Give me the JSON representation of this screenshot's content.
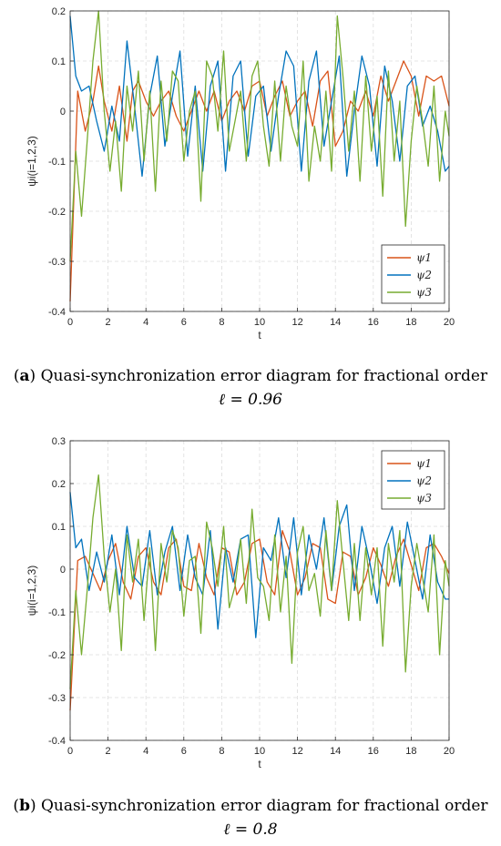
{
  "chart_data": [
    {
      "type": "line",
      "caption_tag": "a",
      "caption_text": "Quasi-synchronization error diagram for fractional order",
      "caption_eq": "ℓ = 0.96",
      "xlabel": "t",
      "ylabel": "ψi(i=1,2,3)",
      "xlim": [
        0,
        20
      ],
      "ylim": [
        -0.4,
        0.2
      ],
      "xticks": [
        0,
        2,
        4,
        6,
        8,
        10,
        12,
        14,
        16,
        18,
        20
      ],
      "yticks": [
        -0.4,
        -0.3,
        -0.2,
        -0.1,
        0,
        0.1,
        0.2
      ],
      "ytick_labels": [
        "-0.4",
        "-0.3",
        "-0.2",
        "-0.1",
        "0",
        "0.1",
        "0.2"
      ],
      "grid": true,
      "legend_position": "bottom-right",
      "series": [
        {
          "name": "ψ1",
          "sub": "1",
          "color": "#D95319",
          "x": [
            0,
            0.4,
            0.8,
            1.2,
            1.5,
            1.8,
            2.2,
            2.6,
            3.0,
            3.3,
            3.6,
            4.0,
            4.4,
            4.8,
            5.2,
            5.6,
            6.0,
            6.4,
            6.8,
            7.2,
            7.6,
            8.0,
            8.4,
            8.8,
            9.2,
            9.6,
            10.0,
            10.4,
            10.8,
            11.2,
            11.6,
            12.0,
            12.4,
            12.8,
            13.2,
            13.6,
            14.0,
            14.4,
            14.8,
            15.2,
            15.6,
            16.0,
            16.4,
            16.8,
            17.2,
            17.6,
            18.0,
            18.4,
            18.8,
            19.2,
            19.6,
            20.0
          ],
          "y": [
            -0.38,
            0.04,
            -0.04,
            0.02,
            0.09,
            0.02,
            -0.04,
            0.05,
            -0.06,
            0.04,
            0.06,
            0.02,
            -0.01,
            0.02,
            0.04,
            -0.01,
            -0.04,
            0.0,
            0.04,
            0.0,
            0.04,
            -0.02,
            0.02,
            0.04,
            0.0,
            0.05,
            0.06,
            -0.01,
            0.03,
            0.06,
            -0.01,
            0.02,
            0.04,
            -0.03,
            0.06,
            0.08,
            -0.07,
            -0.04,
            0.02,
            0.0,
            0.04,
            -0.01,
            0.07,
            0.02,
            0.06,
            0.1,
            0.07,
            -0.01,
            0.07,
            0.06,
            0.07,
            0.01
          ]
        },
        {
          "name": "ψ2",
          "sub": "2",
          "color": "#0072BD",
          "x": [
            0,
            0.3,
            0.6,
            1.0,
            1.4,
            1.8,
            2.2,
            2.6,
            3.0,
            3.4,
            3.8,
            4.2,
            4.6,
            5.0,
            5.4,
            5.8,
            6.2,
            6.6,
            7.0,
            7.4,
            7.8,
            8.2,
            8.6,
            9.0,
            9.4,
            9.8,
            10.2,
            10.6,
            11.0,
            11.4,
            11.8,
            12.2,
            12.6,
            13.0,
            13.4,
            13.8,
            14.2,
            14.6,
            15.0,
            15.4,
            15.8,
            16.2,
            16.6,
            17.0,
            17.4,
            17.8,
            18.2,
            18.6,
            19.0,
            19.4,
            19.8,
            20.0
          ],
          "y": [
            0.19,
            0.07,
            0.04,
            0.05,
            -0.02,
            -0.08,
            0.01,
            -0.06,
            0.14,
            0.01,
            -0.13,
            0.03,
            0.11,
            -0.07,
            0.03,
            0.12,
            -0.09,
            0.05,
            -0.12,
            0.05,
            0.1,
            -0.12,
            0.07,
            0.1,
            -0.09,
            0.03,
            0.05,
            -0.08,
            0.03,
            0.12,
            0.09,
            -0.12,
            0.06,
            0.12,
            -0.07,
            0.02,
            0.11,
            -0.13,
            0.0,
            0.11,
            0.05,
            -0.11,
            0.09,
            0.02,
            -0.1,
            0.05,
            0.07,
            -0.03,
            0.01,
            -0.04,
            -0.12,
            -0.11
          ]
        },
        {
          "name": "ψ3",
          "sub": "3",
          "color": "#77AC30",
          "x": [
            0,
            0.3,
            0.6,
            0.9,
            1.2,
            1.5,
            1.8,
            2.1,
            2.4,
            2.7,
            3.0,
            3.3,
            3.6,
            3.9,
            4.2,
            4.5,
            4.8,
            5.1,
            5.4,
            5.7,
            6.0,
            6.3,
            6.6,
            6.9,
            7.2,
            7.5,
            7.8,
            8.1,
            8.4,
            8.7,
            9.0,
            9.3,
            9.6,
            9.9,
            10.2,
            10.5,
            10.8,
            11.1,
            11.4,
            11.7,
            12.0,
            12.3,
            12.6,
            12.9,
            13.2,
            13.5,
            13.8,
            14.1,
            14.4,
            14.7,
            15.0,
            15.3,
            15.6,
            15.9,
            16.2,
            16.5,
            16.8,
            17.1,
            17.4,
            17.7,
            18.0,
            18.3,
            18.6,
            18.9,
            19.2,
            19.5,
            19.8,
            20.0
          ],
          "y": [
            -0.3,
            -0.08,
            -0.21,
            -0.06,
            0.1,
            0.2,
            0.0,
            -0.12,
            -0.02,
            -0.16,
            0.05,
            -0.04,
            0.08,
            -0.1,
            0.04,
            -0.16,
            0.06,
            -0.06,
            0.08,
            0.06,
            -0.1,
            0.0,
            0.04,
            -0.18,
            0.1,
            0.07,
            -0.04,
            0.12,
            -0.08,
            -0.02,
            0.04,
            -0.1,
            0.07,
            0.1,
            -0.03,
            -0.11,
            0.06,
            -0.1,
            0.05,
            -0.03,
            -0.07,
            0.1,
            -0.14,
            -0.03,
            -0.1,
            0.04,
            -0.12,
            0.19,
            0.07,
            -0.08,
            0.04,
            -0.14,
            0.07,
            -0.08,
            0.03,
            -0.17,
            0.08,
            -0.1,
            0.02,
            -0.23,
            -0.06,
            0.05,
            -0.02,
            -0.11,
            0.05,
            -0.14,
            0.0,
            -0.05
          ]
        }
      ]
    },
    {
      "type": "line",
      "caption_tag": "b",
      "caption_text": "Quasi-synchronization error diagram for fractional order",
      "caption_eq": "ℓ = 0.8",
      "xlabel": "t",
      "ylabel": "ψi(i=1,2,3)",
      "xlim": [
        0,
        20
      ],
      "ylim": [
        -0.4,
        0.3
      ],
      "xticks": [
        0,
        2,
        4,
        6,
        8,
        10,
        12,
        14,
        16,
        18,
        20
      ],
      "yticks": [
        -0.4,
        -0.3,
        -0.2,
        -0.1,
        0,
        0.1,
        0.2,
        0.3
      ],
      "ytick_labels": [
        "-0.4",
        "-0.3",
        "-0.2",
        "-0.1",
        "0",
        "0.1",
        "0.2",
        "0.3"
      ],
      "grid": true,
      "legend_position": "top-right",
      "series": [
        {
          "name": "ψ1",
          "sub": "1",
          "color": "#D95319",
          "x": [
            0,
            0.4,
            0.8,
            1.2,
            1.6,
            2.0,
            2.4,
            2.8,
            3.2,
            3.6,
            4.0,
            4.4,
            4.8,
            5.2,
            5.6,
            6.0,
            6.4,
            6.8,
            7.2,
            7.6,
            8.0,
            8.4,
            8.8,
            9.2,
            9.6,
            10.0,
            10.4,
            10.8,
            11.2,
            11.6,
            12.0,
            12.4,
            12.8,
            13.2,
            13.6,
            14.0,
            14.4,
            14.8,
            15.2,
            15.6,
            16.0,
            16.4,
            16.8,
            17.2,
            17.6,
            18.0,
            18.4,
            18.8,
            19.2,
            19.6,
            20.0
          ],
          "y": [
            -0.33,
            0.02,
            0.03,
            -0.01,
            -0.05,
            0.02,
            0.06,
            -0.03,
            -0.07,
            0.03,
            0.05,
            -0.03,
            -0.06,
            0.05,
            0.07,
            -0.04,
            -0.05,
            0.06,
            -0.02,
            -0.06,
            0.05,
            0.04,
            -0.06,
            -0.03,
            0.06,
            0.07,
            -0.03,
            -0.06,
            0.09,
            0.04,
            -0.06,
            -0.02,
            0.06,
            0.05,
            -0.07,
            -0.08,
            0.04,
            0.03,
            -0.06,
            -0.02,
            0.05,
            0.01,
            -0.04,
            0.03,
            0.07,
            0.01,
            -0.05,
            0.05,
            0.06,
            0.03,
            -0.01
          ]
        },
        {
          "name": "ψ2",
          "sub": "2",
          "color": "#0072BD",
          "x": [
            0,
            0.3,
            0.6,
            1.0,
            1.4,
            1.8,
            2.2,
            2.6,
            3.0,
            3.4,
            3.8,
            4.2,
            4.6,
            5.0,
            5.4,
            5.8,
            6.2,
            6.6,
            7.0,
            7.4,
            7.8,
            8.2,
            8.6,
            9.0,
            9.4,
            9.8,
            10.2,
            10.6,
            11.0,
            11.4,
            11.8,
            12.2,
            12.6,
            13.0,
            13.4,
            13.8,
            14.2,
            14.6,
            15.0,
            15.4,
            15.8,
            16.2,
            16.6,
            17.0,
            17.4,
            17.8,
            18.2,
            18.6,
            19.0,
            19.4,
            19.8,
            20.0
          ],
          "y": [
            0.18,
            0.05,
            0.07,
            -0.05,
            0.04,
            -0.03,
            0.08,
            -0.06,
            0.1,
            -0.02,
            -0.04,
            0.09,
            -0.06,
            0.04,
            0.1,
            -0.05,
            0.08,
            -0.02,
            -0.06,
            0.09,
            -0.14,
            0.05,
            -0.03,
            0.07,
            0.08,
            -0.16,
            0.05,
            0.02,
            0.12,
            -0.02,
            0.12,
            -0.06,
            0.08,
            0.0,
            0.12,
            -0.05,
            0.1,
            0.15,
            -0.05,
            0.1,
            0.02,
            -0.08,
            0.05,
            0.1,
            -0.04,
            0.11,
            0.02,
            -0.07,
            0.08,
            -0.03,
            -0.07,
            -0.07
          ]
        },
        {
          "name": "ψ3",
          "sub": "3",
          "color": "#77AC30",
          "x": [
            0,
            0.3,
            0.6,
            0.9,
            1.2,
            1.5,
            1.8,
            2.1,
            2.4,
            2.7,
            3.0,
            3.3,
            3.6,
            3.9,
            4.2,
            4.5,
            4.8,
            5.1,
            5.4,
            5.7,
            6.0,
            6.3,
            6.6,
            6.9,
            7.2,
            7.5,
            7.8,
            8.1,
            8.4,
            8.7,
            9.0,
            9.3,
            9.6,
            9.9,
            10.2,
            10.5,
            10.8,
            11.1,
            11.4,
            11.7,
            12.0,
            12.3,
            12.6,
            12.9,
            13.2,
            13.5,
            13.8,
            14.1,
            14.4,
            14.7,
            15.0,
            15.3,
            15.6,
            15.9,
            16.2,
            16.5,
            16.8,
            17.1,
            17.4,
            17.7,
            18.0,
            18.3,
            18.6,
            18.9,
            19.2,
            19.5,
            19.8,
            20.0
          ],
          "y": [
            -0.28,
            -0.05,
            -0.2,
            -0.05,
            0.12,
            0.22,
            0.03,
            -0.1,
            0.0,
            -0.19,
            0.08,
            -0.03,
            0.07,
            -0.12,
            0.05,
            -0.19,
            0.06,
            -0.03,
            0.09,
            0.05,
            -0.11,
            0.02,
            0.03,
            -0.15,
            0.11,
            0.05,
            -0.04,
            0.1,
            -0.09,
            -0.04,
            0.07,
            -0.08,
            0.14,
            -0.02,
            -0.04,
            -0.12,
            0.08,
            -0.1,
            0.03,
            -0.22,
            0.04,
            0.1,
            -0.05,
            -0.01,
            -0.11,
            0.09,
            -0.05,
            0.16,
            0.02,
            -0.12,
            0.06,
            -0.12,
            0.05,
            -0.06,
            0.05,
            -0.18,
            0.06,
            -0.03,
            0.09,
            -0.24,
            -0.04,
            0.06,
            -0.02,
            -0.1,
            0.08,
            -0.2,
            0.02,
            -0.04
          ]
        }
      ]
    }
  ]
}
